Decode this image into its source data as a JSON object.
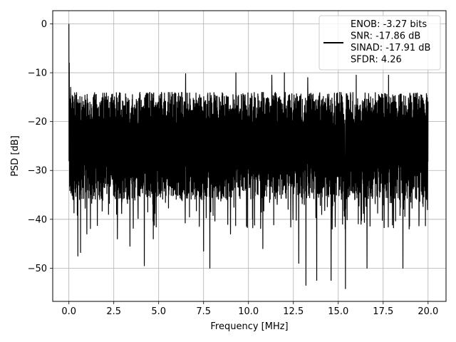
{
  "chart_data": {
    "type": "line",
    "title": "",
    "xlabel": "Frequency [MHz]",
    "ylabel": "PSD [dB]",
    "xlim": [
      -0.9,
      21.0
    ],
    "ylim": [
      -56.8,
      2.7
    ],
    "xticks": [
      0.0,
      2.5,
      5.0,
      7.5,
      10.0,
      12.5,
      15.0,
      17.5,
      20.0
    ],
    "xtick_labels": [
      "0.0",
      "2.5",
      "5.0",
      "7.5",
      "10.0",
      "12.5",
      "15.0",
      "17.5",
      "20.0"
    ],
    "yticks": [
      0,
      -10,
      -20,
      -30,
      -40,
      -50
    ],
    "ytick_labels": [
      "0",
      "−10",
      "−20",
      "−30",
      "−40",
      "−50"
    ],
    "grid": true,
    "legend_position": "top-right",
    "legend_lines": [
      "ENOB: -3.27 bits",
      "SNR: -17.86 dB",
      "SINAD: -17.91 dB",
      "SFDR: 4.26"
    ],
    "series": [
      {
        "color": "#000000",
        "x_range": [
          0.0,
          20.0
        ],
        "noise_floor_db": [
          -36,
          -14
        ],
        "noise_trend": "roughly flat around -24 dB",
        "peaks": [
          {
            "x": 0.0,
            "y": 0.0
          },
          {
            "x": 0.02,
            "y": -8.0
          },
          {
            "x": 0.1,
            "y": -13.0
          }
        ],
        "dips": [
          {
            "x": 0.5,
            "y": -47.5
          },
          {
            "x": 0.65,
            "y": -46.8
          },
          {
            "x": 1.0,
            "y": -43.0
          },
          {
            "x": 2.7,
            "y": -44.0
          },
          {
            "x": 3.4,
            "y": -45.5
          },
          {
            "x": 4.2,
            "y": -49.5
          },
          {
            "x": 4.7,
            "y": -44.0
          },
          {
            "x": 7.5,
            "y": -46.5
          },
          {
            "x": 7.85,
            "y": -50.0
          },
          {
            "x": 9.0,
            "y": -43.0
          },
          {
            "x": 10.8,
            "y": -46.0
          },
          {
            "x": 12.8,
            "y": -49.0
          },
          {
            "x": 13.2,
            "y": -53.5
          },
          {
            "x": 13.8,
            "y": -52.5
          },
          {
            "x": 14.6,
            "y": -52.5
          },
          {
            "x": 15.4,
            "y": -54.2
          },
          {
            "x": 16.6,
            "y": -50.0
          },
          {
            "x": 17.8,
            "y": -46.5
          },
          {
            "x": 18.6,
            "y": -50.0
          }
        ],
        "spikes": [
          {
            "x": 6.5,
            "y": -10.2
          },
          {
            "x": 9.3,
            "y": -10.0
          },
          {
            "x": 11.3,
            "y": -10.5
          },
          {
            "x": 12.0,
            "y": -10.0
          },
          {
            "x": 13.3,
            "y": -11.0
          },
          {
            "x": 16.0,
            "y": -10.5
          },
          {
            "x": 17.8,
            "y": -10.5
          }
        ]
      }
    ]
  }
}
